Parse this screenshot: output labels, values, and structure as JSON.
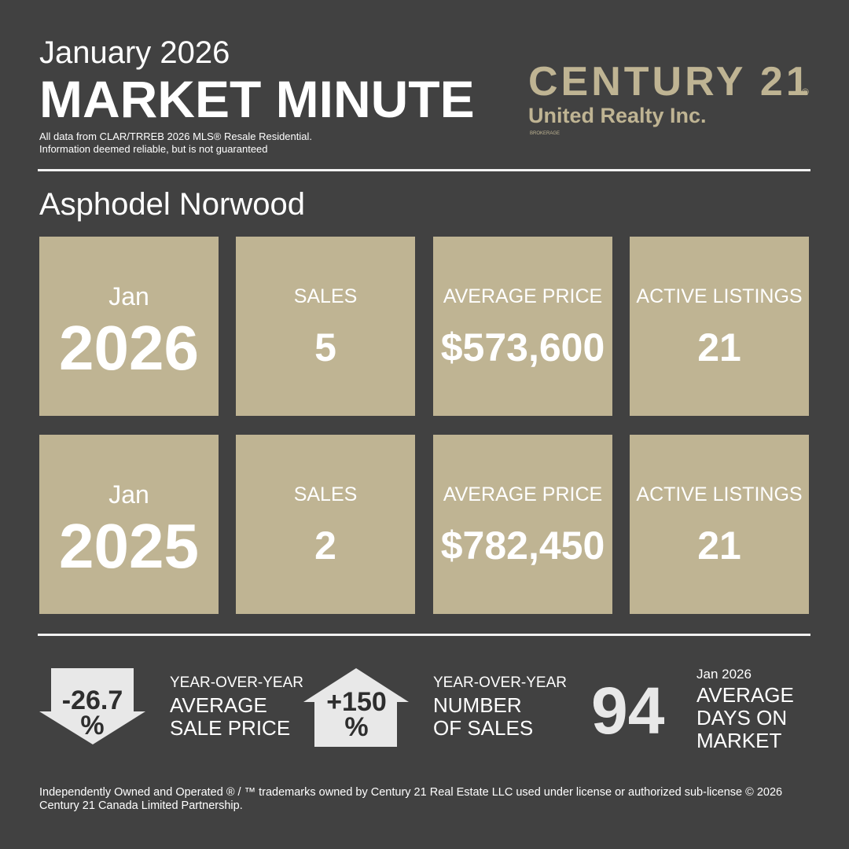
{
  "header": {
    "month": "January 2026",
    "title": "MARKET MINUTE",
    "notes": [
      "All data from CLAR/TRREB 2026 MLS® Resale  Residential.",
      "Information deemed reliable, but is not guaranteed"
    ]
  },
  "logo": {
    "brand": "CENTURY 21",
    "mark": "®",
    "office": "United Realty Inc.",
    "type": "BROKERAGE"
  },
  "area": "Asphodel Norwood",
  "rows": [
    {
      "month": "Jan",
      "year": "2026",
      "stats": [
        {
          "label": "SALES",
          "value": "5"
        },
        {
          "label": "AVERAGE PRICE",
          "value": "$573,600"
        },
        {
          "label": "ACTIVE LISTINGS",
          "value": "21"
        }
      ]
    },
    {
      "month": "Jan",
      "year": "2025",
      "stats": [
        {
          "label": "SALES",
          "value": "2"
        },
        {
          "label": "AVERAGE PRICE",
          "value": "$782,450"
        },
        {
          "label": "ACTIVE LISTINGS",
          "value": "21"
        }
      ]
    }
  ],
  "summary": {
    "price_change": {
      "value": "-26.7",
      "unit": "%",
      "label": [
        "YEAR-OVER-YEAR",
        "AVERAGE",
        "SALE PRICE"
      ]
    },
    "sales_change": {
      "value": "+150",
      "unit": "%",
      "label": [
        "YEAR-OVER-YEAR",
        "NUMBER",
        "OF SALES"
      ]
    },
    "days_on_market": {
      "value": "94",
      "period": "Jan 2026",
      "label": [
        "AVERAGE",
        "DAYS ON",
        "MARKET"
      ]
    }
  },
  "footer": "Independently Owned and Operated ® / ™ trademarks owned by Century 21 Real Estate LLC used under license or authorized sub-license © 2026 Century 21 Canada Limited Partnership."
}
